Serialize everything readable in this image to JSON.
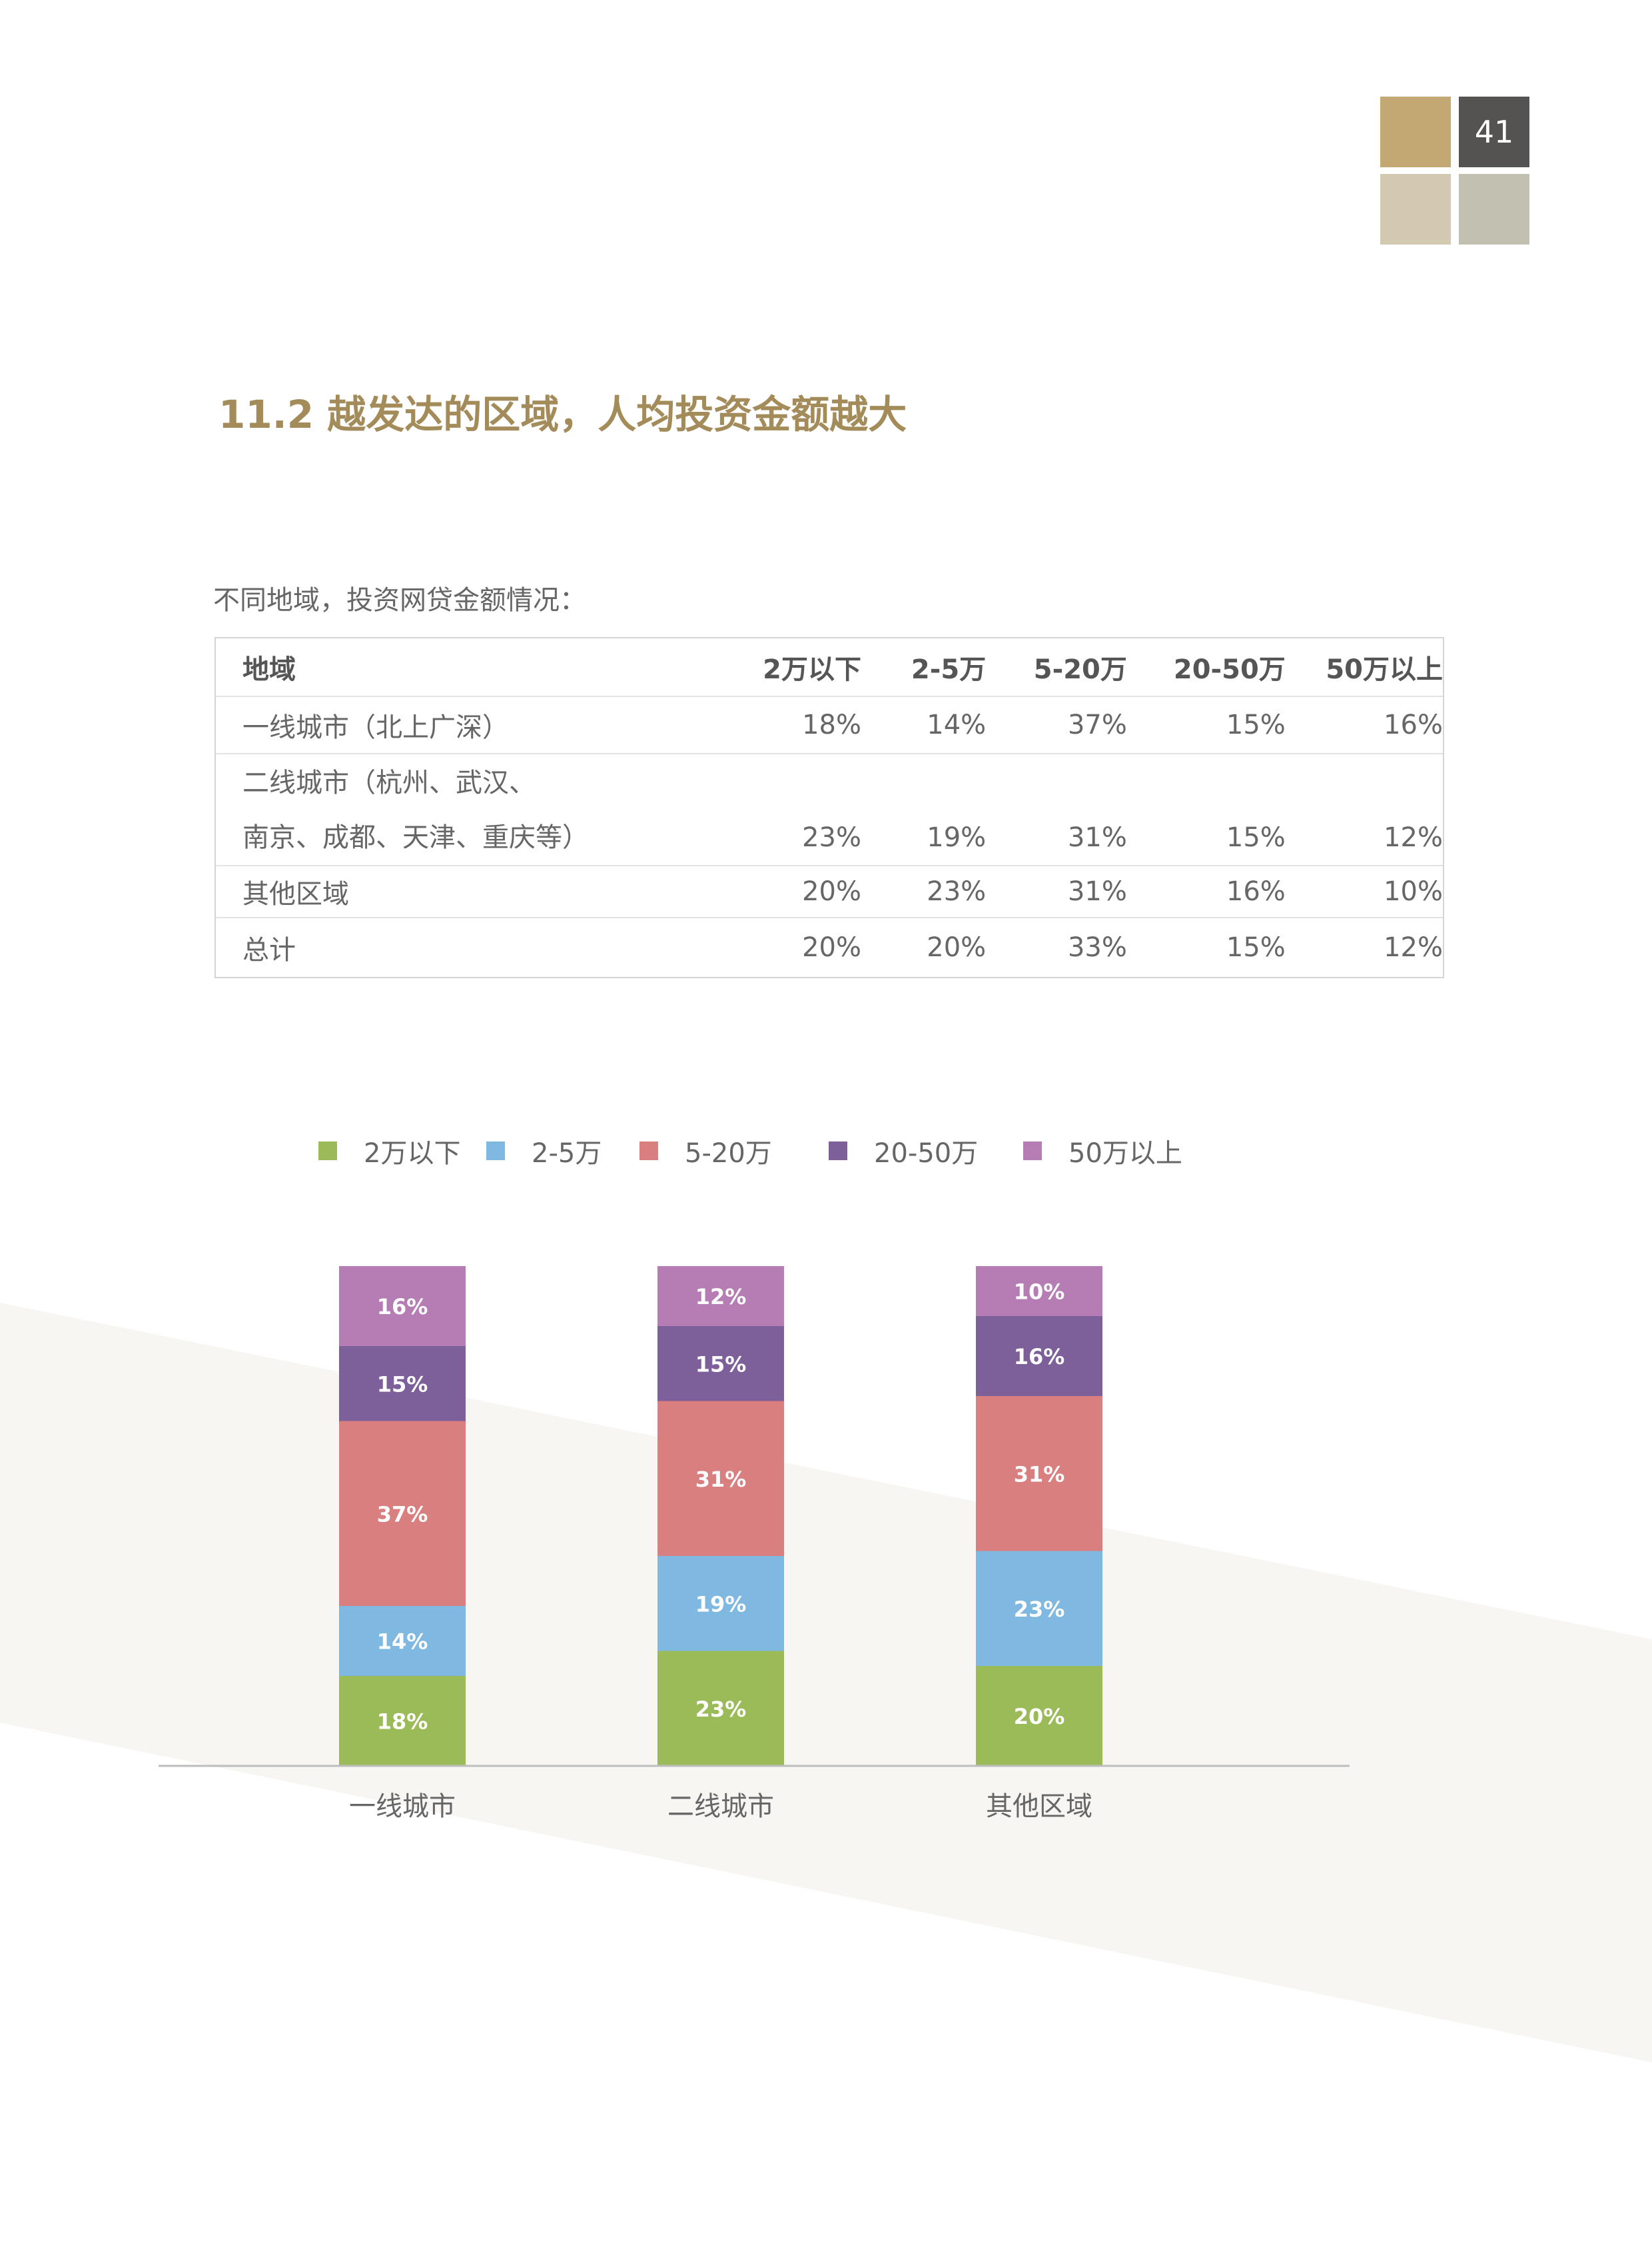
{
  "page": {
    "number": "41",
    "accent": "#a48c5a"
  },
  "section_title": "11.2 越发达的区域，人均投资金额越大",
  "table_caption": "不同地域，投资网贷金额情况：",
  "table": {
    "headers": [
      "地域",
      "2万以下",
      "2-5万",
      "5-20万",
      "20-50万",
      "50万以上"
    ],
    "rows": [
      {
        "region_lines": [
          "一线城市（北上广深）"
        ],
        "values": [
          "18%",
          "14%",
          "37%",
          "15%",
          "16%"
        ]
      },
      {
        "region_lines": [
          "二线城市（杭州、武汉、",
          "南京、成都、天津、重庆等）"
        ],
        "values": [
          "23%",
          "19%",
          "31%",
          "15%",
          "12%"
        ]
      },
      {
        "region_lines": [
          "其他区域"
        ],
        "values": [
          "20%",
          "23%",
          "31%",
          "16%",
          "10%"
        ]
      },
      {
        "region_lines": [
          "总计"
        ],
        "values": [
          "20%",
          "20%",
          "33%",
          "15%",
          "12%"
        ]
      }
    ]
  },
  "chart_data": {
    "type": "bar",
    "stacked": true,
    "categories": [
      "一线城市",
      "二线城市",
      "其他区域"
    ],
    "series": [
      {
        "name": "2万以下",
        "color": "#9bbb59",
        "values": [
          18,
          23,
          20
        ]
      },
      {
        "name": "2-5万",
        "color": "#7fb8e0",
        "values": [
          14,
          19,
          23
        ]
      },
      {
        "name": "5-20万",
        "color": "#d97f7f",
        "values": [
          37,
          31,
          31
        ]
      },
      {
        "name": "20-50万",
        "color": "#7d5f9a",
        "values": [
          15,
          15,
          16
        ]
      },
      {
        "name": "50万以上",
        "color": "#b57db4",
        "values": [
          16,
          12,
          10
        ]
      }
    ],
    "value_suffix": "%",
    "legend": "top",
    "grid": false,
    "ylim": [
      0,
      100
    ]
  }
}
